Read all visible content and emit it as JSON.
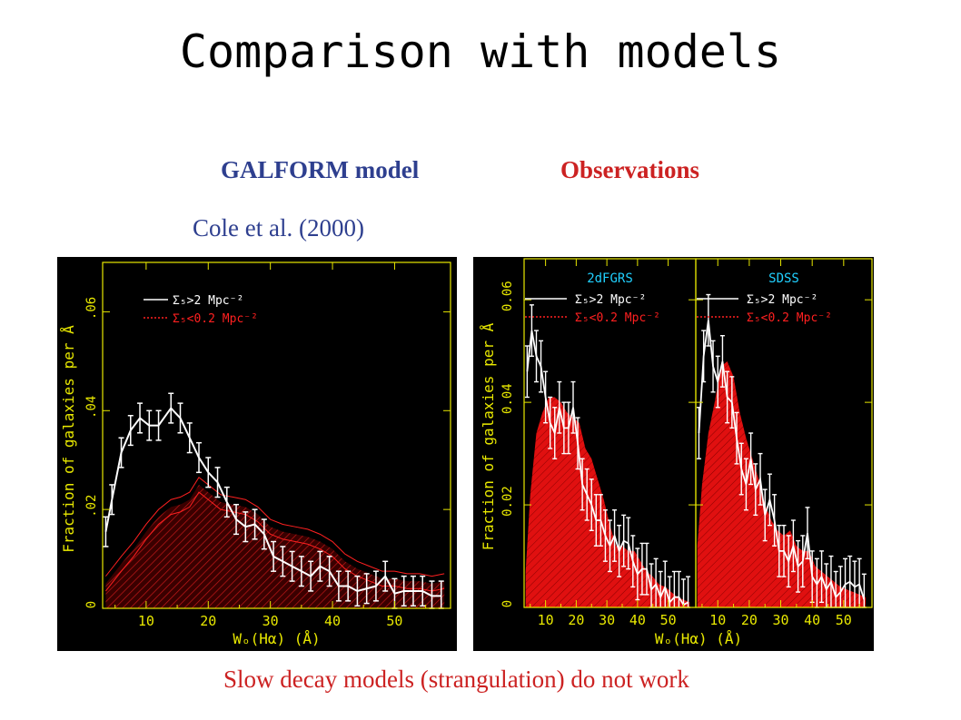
{
  "title": "Comparison with models",
  "labels": {
    "model": "GALFORM model",
    "observations": "Observations",
    "citation": "Cole et al. (2000)",
    "footer": "Slow decay models (strangulation) do not work"
  },
  "colors": {
    "model_label": "#2e3f8f",
    "obs_label": "#cc2222",
    "axis": "#e8e800",
    "high_density": "#ffffff",
    "low_density": "#ff2020",
    "panel_title": "#20d0ff"
  },
  "chart_data": [
    {
      "type": "line",
      "panel": "model",
      "xlabel": "Wₒ(Hα) (Å)",
      "ylabel": "Fraction of galaxies per Å",
      "xlim": [
        3,
        59
      ],
      "ylim": [
        0,
        0.07
      ],
      "xticks": [
        10,
        20,
        30,
        40,
        50
      ],
      "yticks": [
        0,
        0.02,
        0.04,
        0.06
      ],
      "ytick_labels": [
        "0",
        ".02",
        ".04",
        ".06"
      ],
      "legend": [
        "Σ₅>2 Mpc⁻²",
        "Σ₅<0.2 Mpc⁻²"
      ],
      "series": [
        {
          "name": "Σ₅>2 Mpc⁻²",
          "x": [
            3.5,
            4.5,
            6,
            7.5,
            9,
            10.5,
            12,
            14,
            15.5,
            17,
            18.5,
            20,
            21.5,
            23,
            24.5,
            26,
            27.5,
            29,
            30.5,
            32,
            33.5,
            35,
            36.5,
            38,
            39.5,
            41,
            42.5,
            44,
            45.5,
            47,
            48.5,
            50,
            51.5,
            53,
            54.5,
            56,
            57.5
          ],
          "y": [
            0.0155,
            0.022,
            0.0315,
            0.036,
            0.0385,
            0.037,
            0.037,
            0.0405,
            0.0385,
            0.0345,
            0.0305,
            0.0275,
            0.0255,
            0.0215,
            0.018,
            0.0165,
            0.017,
            0.015,
            0.0105,
            0.0095,
            0.0085,
            0.0075,
            0.0065,
            0.0085,
            0.0075,
            0.0045,
            0.0045,
            0.0035,
            0.004,
            0.0045,
            0.0065,
            0.003,
            0.0035,
            0.0035,
            0.0035,
            0.0025,
            0.0025
          ],
          "yerr": 0.003
        },
        {
          "name": "Σ₅<0.2 Mpc⁻²",
          "x": [
            3.5,
            6,
            8,
            10,
            12,
            14,
            15.5,
            17,
            18.5,
            20,
            22,
            24,
            26,
            28,
            30,
            32,
            34,
            36,
            38,
            40,
            42,
            44,
            46,
            48,
            50,
            52,
            54,
            56,
            58
          ],
          "y": [
            0.005,
            0.009,
            0.012,
            0.0155,
            0.0185,
            0.0205,
            0.021,
            0.022,
            0.025,
            0.0235,
            0.0215,
            0.021,
            0.0205,
            0.019,
            0.0165,
            0.0155,
            0.015,
            0.0145,
            0.0135,
            0.012,
            0.0095,
            0.008,
            0.007,
            0.006,
            0.006,
            0.0055,
            0.0055,
            0.005,
            0.0055
          ],
          "band": 0.0015
        }
      ]
    },
    {
      "type": "line",
      "panel": "observations",
      "xlabel": "Wₒ(Hα) (Å)",
      "ylabel": "Fraction of galaxies per Å",
      "xlim": [
        3,
        59
      ],
      "ylim": [
        0,
        0.068
      ],
      "xticks": [
        10,
        20,
        30,
        40,
        50
      ],
      "yticks": [
        0,
        0.02,
        0.04,
        0.06
      ],
      "ytick_labels": [
        "0",
        "0.02",
        "0.04",
        "0.06"
      ],
      "subpanels": [
        {
          "name": "2dFGRS",
          "legend": [
            "Σ₅>2 Mpc⁻²",
            "Σ₅<0.2 Mpc⁻²"
          ],
          "series": [
            {
              "name": "Σ₅>2 Mpc⁻²",
              "x": [
                4,
                5.5,
                7,
                8.5,
                10,
                11.5,
                13,
                14.5,
                16,
                17.5,
                19,
                20.5,
                22,
                23.5,
                25,
                26.5,
                28,
                29.5,
                31,
                32.5,
                34,
                35.5,
                37,
                38.5,
                40,
                41.5,
                43,
                44.5,
                46,
                47.5,
                49,
                50.5,
                52,
                53.5,
                55,
                56.5
              ],
              "y": [
                0.046,
                0.054,
                0.049,
                0.047,
                0.041,
                0.036,
                0.034,
                0.039,
                0.035,
                0.035,
                0.039,
                0.032,
                0.024,
                0.022,
                0.02,
                0.017,
                0.017,
                0.014,
                0.012,
                0.014,
                0.011,
                0.013,
                0.0125,
                0.009,
                0.0065,
                0.0075,
                0.0075,
                0.0035,
                0.0045,
                0.002,
                0.004,
                0.001,
                0.002,
                0.002,
                0.0005,
                0.001
              ],
              "yerr": 0.005
            },
            {
              "name": "Σ₅<0.2 Mpc⁻²",
              "x": [
                3.5,
                5,
                7,
                9,
                11,
                13,
                15,
                17,
                19,
                21,
                23,
                25,
                27,
                29,
                31,
                33,
                35,
                37,
                39,
                41,
                43,
                45,
                47,
                49,
                51,
                53,
                55,
                57
              ],
              "y": [
                0.007,
                0.022,
                0.034,
                0.038,
                0.041,
                0.041,
                0.04,
                0.038,
                0.037,
                0.036,
                0.031,
                0.029,
                0.025,
                0.021,
                0.016,
                0.012,
                0.012,
                0.011,
                0.011,
                0.009,
                0.007,
                0.006,
                0.0045,
                0.004,
                0.003,
                0.002,
                0.0015,
                0.001
              ]
            }
          ]
        },
        {
          "name": "SDSS",
          "legend": [
            "Σ₅>2 Mpc⁻²",
            "Σ₅<0.2 Mpc⁻²"
          ],
          "series": [
            {
              "name": "Σ₅>2 Mpc⁻²",
              "x": [
                4,
                5.5,
                7,
                8.5,
                10,
                11.5,
                13,
                14.5,
                16,
                17.5,
                19,
                20.5,
                22,
                23.5,
                25,
                26.5,
                28,
                29.5,
                31,
                32.5,
                34,
                35.5,
                37,
                38.5,
                40,
                41.5,
                43,
                44.5,
                46,
                47.5,
                49,
                50.5,
                52,
                53.5,
                55,
                56.5
              ],
              "y": [
                0.034,
                0.049,
                0.056,
                0.047,
                0.044,
                0.048,
                0.041,
                0.04,
                0.033,
                0.027,
                0.024,
                0.029,
                0.023,
                0.025,
                0.018,
                0.021,
                0.017,
                0.011,
                0.011,
                0.009,
                0.012,
                0.008,
                0.009,
                0.0145,
                0.006,
                0.0045,
                0.006,
                0.0035,
                0.005,
                0.002,
                0.003,
                0.0045,
                0.005,
                0.004,
                0.0045,
                0.0015
              ],
              "yerr": 0.005
            },
            {
              "name": "Σ₅<0.2 Mpc⁻²",
              "x": [
                3.5,
                5,
                7,
                9,
                11,
                13,
                15,
                17,
                19,
                21,
                23,
                25,
                27,
                29,
                31,
                33,
                35,
                37,
                39,
                41,
                43,
                45,
                47,
                49,
                51,
                53,
                55,
                57
              ],
              "y": [
                0.012,
                0.024,
                0.034,
                0.04,
                0.047,
                0.048,
                0.045,
                0.038,
                0.033,
                0.029,
                0.025,
                0.02,
                0.017,
                0.015,
                0.014,
                0.015,
                0.012,
                0.011,
                0.011,
                0.008,
                0.007,
                0.006,
                0.005,
                0.004,
                0.0035,
                0.003,
                0.0025,
                0.002
              ]
            }
          ]
        }
      ]
    }
  ]
}
